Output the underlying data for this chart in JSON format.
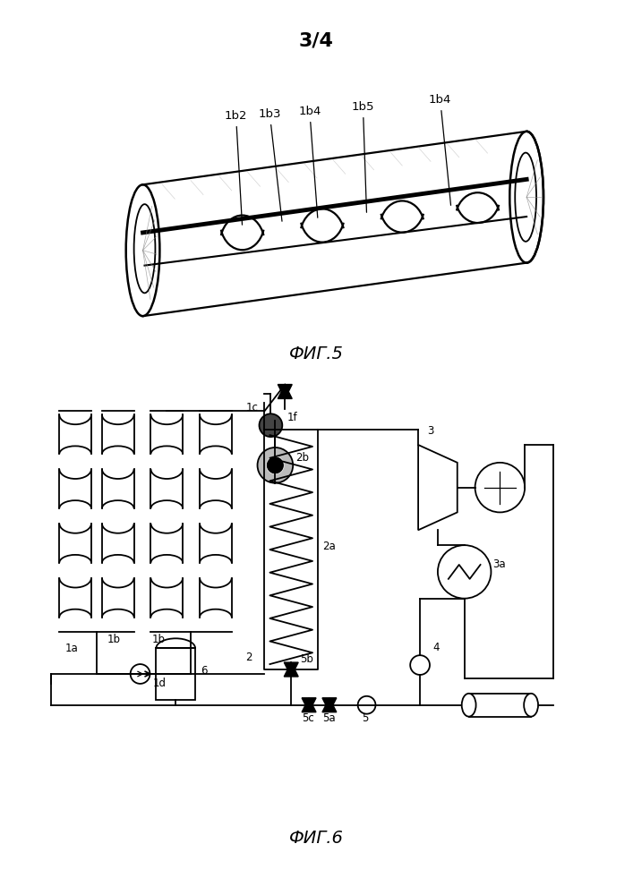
{
  "page_label": "3/4",
  "fig5_label": "ФИГ.5",
  "fig6_label": "ФИГ.6",
  "bg_color": "#ffffff",
  "line_color": "#000000"
}
